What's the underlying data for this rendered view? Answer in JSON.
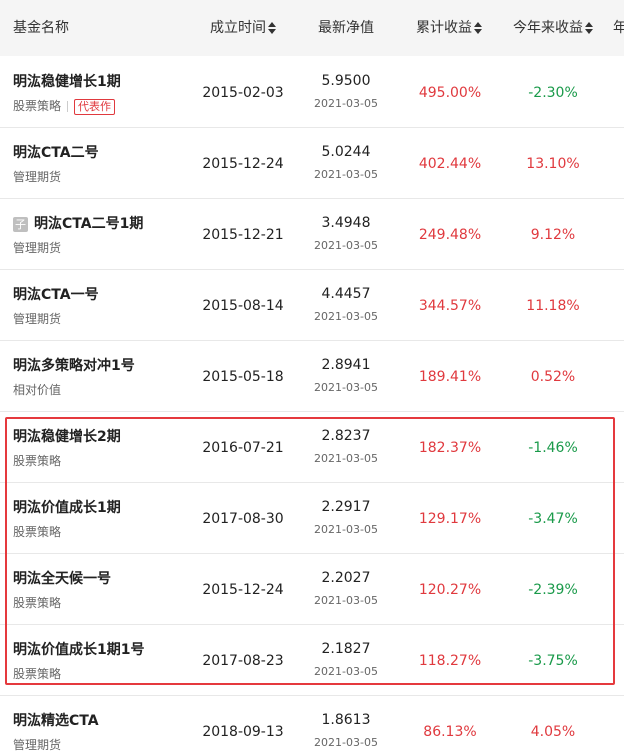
{
  "header": {
    "fund_name": "基金名称",
    "inception": "成立时间",
    "nav": "最新净值",
    "cumulative": "累计收益",
    "ytd": "今年来收益",
    "more": "年"
  },
  "colors": {
    "positive": "#e0393e",
    "negative": "#1a9a4a",
    "highlight": "#e5393d"
  },
  "rows": [
    {
      "name": "明汯稳健增长1期",
      "type": "股票策略",
      "badge": "代表作",
      "date": "2015-02-03",
      "nav": "5.9500",
      "nav_date": "2021-03-05",
      "cum": "495.00%",
      "ytd": "-2.30%"
    },
    {
      "name": "明汯CTA二号",
      "type": "管理期货",
      "date": "2015-12-24",
      "nav": "5.0244",
      "nav_date": "2021-03-05",
      "cum": "402.44%",
      "ytd": "13.10%"
    },
    {
      "name": "明汯CTA二号1期",
      "type": "管理期货",
      "sub_icon": "子",
      "date": "2015-12-21",
      "nav": "3.4948",
      "nav_date": "2021-03-05",
      "cum": "249.48%",
      "ytd": "9.12%"
    },
    {
      "name": "明汯CTA一号",
      "type": "管理期货",
      "date": "2015-08-14",
      "nav": "4.4457",
      "nav_date": "2021-03-05",
      "cum": "344.57%",
      "ytd": "11.18%"
    },
    {
      "name": "明汯多策略对冲1号",
      "type": "相对价值",
      "date": "2015-05-18",
      "nav": "2.8941",
      "nav_date": "2021-03-05",
      "cum": "189.41%",
      "ytd": "0.52%"
    },
    {
      "name": "明汯稳健增长2期",
      "type": "股票策略",
      "date": "2016-07-21",
      "nav": "2.8237",
      "nav_date": "2021-03-05",
      "cum": "182.37%",
      "ytd": "-1.46%"
    },
    {
      "name": "明汯价值成长1期",
      "type": "股票策略",
      "date": "2017-08-30",
      "nav": "2.2917",
      "nav_date": "2021-03-05",
      "cum": "129.17%",
      "ytd": "-3.47%"
    },
    {
      "name": "明汯全天候一号",
      "type": "股票策略",
      "date": "2015-12-24",
      "nav": "2.2027",
      "nav_date": "2021-03-05",
      "cum": "120.27%",
      "ytd": "-2.39%"
    },
    {
      "name": "明汯价值成长1期1号",
      "type": "股票策略",
      "date": "2017-08-23",
      "nav": "2.1827",
      "nav_date": "2021-03-05",
      "cum": "118.27%",
      "ytd": "-3.75%"
    },
    {
      "name": "明汯精选CTA",
      "type": "管理期货",
      "date": "2018-09-13",
      "nav": "1.8613",
      "nav_date": "2021-03-05",
      "cum": "86.13%",
      "ytd": "4.05%"
    }
  ]
}
